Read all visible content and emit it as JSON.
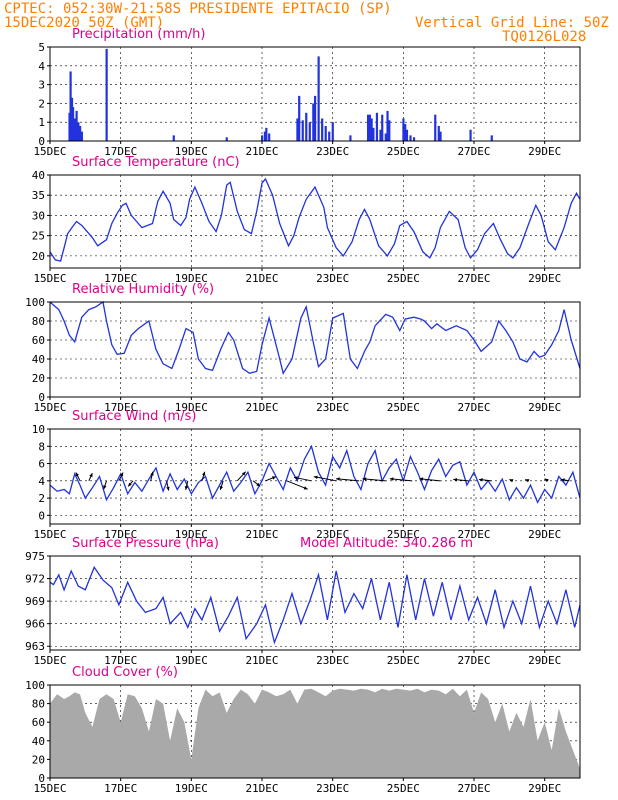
{
  "header": {
    "left_line1": "CPTEC:   052:30W-21:58S  PRESIDENTE EPITACIO (SP)",
    "left_line2": "15DEC2020 50Z (GMT)",
    "right_line2": "Vertical Grid Line: 50Z",
    "right_line3": "TQ0126L028"
  },
  "colors": {
    "header_text": "#ff8000",
    "panel_title": "#e0008a",
    "series_line": "#2233dd",
    "cloud_fill": "#a9a9a9",
    "axis": "#000000"
  },
  "x_axis": {
    "tick_labels": [
      "15DEC",
      "17DEC",
      "19DEC",
      "21DEC",
      "23DEC",
      "25DEC",
      "27DEC",
      "29DEC"
    ],
    "tick_days": [
      0,
      2,
      4,
      6,
      8,
      10,
      12,
      14
    ],
    "range_days": [
      0,
      15
    ]
  },
  "chart_data": [
    {
      "type": "bar",
      "title": "Precipitation (mm/h)",
      "ylim": [
        0,
        5
      ],
      "yticks": [
        0,
        1,
        2,
        3,
        4,
        5
      ],
      "x_unit": "days since 15DEC 00Z",
      "x": [
        0.55,
        0.58,
        0.62,
        0.65,
        0.7,
        0.75,
        0.8,
        0.85,
        0.9,
        1.6,
        3.5,
        5.0,
        6.0,
        6.08,
        6.12,
        6.2,
        7.0,
        7.05,
        7.15,
        7.25,
        7.35,
        7.45,
        7.5,
        7.6,
        7.7,
        7.8,
        7.9,
        8.0,
        8.5,
        9.0,
        9.05,
        9.1,
        9.15,
        9.25,
        9.35,
        9.4,
        9.5,
        9.55,
        9.6,
        10.0,
        10.05,
        10.1,
        10.2,
        10.3,
        10.9,
        11.0,
        11.05,
        11.9,
        12.5
      ],
      "values": [
        1.5,
        3.7,
        2.3,
        1.8,
        1.2,
        1.6,
        1.0,
        0.8,
        0.5,
        4.9,
        0.3,
        0.2,
        0.3,
        0.5,
        0.7,
        0.4,
        1.2,
        2.4,
        1.1,
        1.5,
        1.0,
        2.0,
        2.4,
        4.5,
        1.2,
        0.8,
        0.5,
        1.0,
        0.3,
        1.4,
        1.4,
        1.2,
        0.7,
        1.5,
        0.6,
        1.4,
        0.4,
        1.6,
        1.1,
        1.2,
        0.9,
        0.6,
        0.3,
        0.2,
        1.4,
        0.8,
        0.5,
        0.6,
        0.3
      ]
    },
    {
      "type": "line",
      "title": "Surface Temperature (nC)",
      "ylim": [
        17,
        40
      ],
      "yticks": [
        20,
        25,
        30,
        35,
        40
      ],
      "x": [
        0,
        0.15,
        0.3,
        0.4,
        0.5,
        0.62,
        0.75,
        0.9,
        1.05,
        1.2,
        1.35,
        1.6,
        1.75,
        1.9,
        2.05,
        2.15,
        2.3,
        2.45,
        2.6,
        2.9,
        3.05,
        3.2,
        3.4,
        3.5,
        3.7,
        3.85,
        3.95,
        4.1,
        4.3,
        4.5,
        4.7,
        4.85,
        5.0,
        5.1,
        5.3,
        5.5,
        5.7,
        5.85,
        6.0,
        6.1,
        6.3,
        6.5,
        6.75,
        6.9,
        7.05,
        7.25,
        7.5,
        7.75,
        7.85,
        8.1,
        8.3,
        8.55,
        8.75,
        8.9,
        9.05,
        9.3,
        9.55,
        9.75,
        9.9,
        10.1,
        10.3,
        10.55,
        10.75,
        10.9,
        11.05,
        11.3,
        11.55,
        11.75,
        11.9,
        12.1,
        12.3,
        12.55,
        12.75,
        12.95,
        13.1,
        13.3,
        13.55,
        13.75,
        13.9,
        14.1,
        14.3,
        14.55,
        14.75,
        14.9,
        15.0
      ],
      "values": [
        21,
        19,
        18.7,
        22,
        25.5,
        27,
        28.5,
        27.5,
        26,
        24.5,
        22.5,
        24,
        28,
        30.5,
        32.5,
        33,
        30,
        28.5,
        27,
        28,
        33.5,
        36,
        33,
        29,
        27.5,
        29.5,
        34,
        37,
        33,
        28.5,
        26,
        30,
        37.5,
        38.2,
        31,
        26.5,
        25.5,
        31,
        38,
        39,
        35,
        28,
        22.5,
        25,
        29.5,
        34,
        37,
        32,
        27,
        22,
        20,
        23.5,
        29,
        31.5,
        29,
        22.5,
        20,
        23,
        27.5,
        28.5,
        26,
        21,
        19.5,
        22,
        27,
        31,
        29,
        22,
        19.5,
        21.5,
        25.5,
        28,
        24,
        20.5,
        19.5,
        22,
        28,
        32.5,
        30,
        23.5,
        21.5,
        27,
        33,
        35.5,
        34
      ]
    },
    {
      "type": "line",
      "title": "Relative Humidity (%)",
      "ylim": [
        0,
        100
      ],
      "yticks": [
        0,
        20,
        40,
        60,
        80,
        100
      ],
      "x": [
        0,
        0.25,
        0.4,
        0.55,
        0.7,
        0.9,
        1.1,
        1.3,
        1.5,
        1.6,
        1.75,
        1.9,
        2.1,
        2.3,
        2.5,
        2.8,
        3.0,
        3.2,
        3.45,
        3.65,
        3.85,
        4.05,
        4.2,
        4.4,
        4.6,
        4.85,
        5.05,
        5.2,
        5.45,
        5.65,
        5.85,
        6.0,
        6.2,
        6.5,
        6.6,
        6.85,
        7.1,
        7.25,
        7.45,
        7.6,
        7.8,
        8.0,
        8.3,
        8.5,
        8.7,
        8.9,
        9.05,
        9.2,
        9.5,
        9.7,
        9.9,
        10.05,
        10.3,
        10.5,
        10.6,
        10.8,
        10.95,
        11.2,
        11.5,
        11.8,
        12.0,
        12.2,
        12.5,
        12.7,
        12.9,
        13.1,
        13.3,
        13.5,
        13.7,
        13.85,
        14.0,
        14.2,
        14.4,
        14.55,
        14.75,
        15.0
      ],
      "values": [
        100,
        92,
        80,
        65,
        58,
        84,
        92,
        95,
        100,
        80,
        55,
        45,
        46,
        65,
        72,
        80,
        50,
        35,
        30,
        50,
        72,
        68,
        40,
        30,
        28,
        52,
        68,
        60,
        30,
        25,
        27,
        55,
        83,
        40,
        25,
        40,
        83,
        95,
        58,
        32,
        40,
        83,
        88,
        40,
        30,
        48,
        58,
        75,
        87,
        84,
        70,
        82,
        84,
        82,
        80,
        72,
        77,
        70,
        75,
        70,
        60,
        48,
        58,
        80,
        70,
        58,
        40,
        37,
        48,
        42,
        44,
        55,
        70,
        92,
        60,
        30
      ]
    },
    {
      "type": "line",
      "title": "Surface Wind (m/s)",
      "ylim": [
        -1,
        10
      ],
      "yticks": [
        0,
        2,
        4,
        6,
        8,
        10
      ],
      "x": [
        0,
        0.2,
        0.4,
        0.55,
        0.7,
        0.85,
        1.0,
        1.2,
        1.4,
        1.6,
        1.8,
        2.0,
        2.2,
        2.4,
        2.6,
        2.8,
        3.0,
        3.2,
        3.4,
        3.6,
        3.8,
        4.0,
        4.2,
        4.4,
        4.6,
        4.8,
        5.0,
        5.2,
        5.4,
        5.6,
        5.8,
        6.0,
        6.2,
        6.4,
        6.6,
        6.8,
        7.0,
        7.2,
        7.4,
        7.6,
        7.8,
        8.0,
        8.2,
        8.4,
        8.6,
        8.8,
        9.0,
        9.2,
        9.4,
        9.6,
        9.8,
        10.0,
        10.2,
        10.4,
        10.6,
        10.8,
        11.0,
        11.2,
        11.4,
        11.6,
        11.8,
        12.0,
        12.2,
        12.4,
        12.6,
        12.8,
        13.0,
        13.2,
        13.4,
        13.6,
        13.8,
        14.0,
        14.2,
        14.4,
        14.6,
        14.8,
        15.0
      ],
      "values": [
        3.5,
        2.8,
        3.0,
        2.5,
        4.8,
        3.5,
        2.0,
        3.2,
        4.5,
        1.8,
        3.2,
        4.8,
        2.5,
        3.8,
        2.8,
        4.2,
        5.5,
        2.8,
        4.8,
        3.0,
        4.2,
        2.5,
        3.8,
        4.5,
        2.0,
        3.5,
        5.0,
        2.8,
        3.8,
        5.0,
        2.5,
        4.0,
        6.0,
        4.5,
        3.0,
        5.5,
        4.0,
        6.5,
        8.0,
        5.0,
        3.5,
        6.8,
        5.5,
        7.5,
        4.5,
        3.0,
        6.0,
        7.5,
        4.0,
        5.5,
        6.5,
        4.0,
        6.8,
        5.0,
        3.0,
        5.2,
        6.5,
        4.5,
        5.8,
        6.2,
        3.5,
        5.0,
        3.0,
        4.0,
        2.8,
        4.2,
        1.8,
        3.2,
        2.0,
        3.5,
        1.5,
        3.0,
        2.0,
        4.5,
        3.5,
        5.0,
        2.0
      ],
      "vectors": [
        {
          "day": 0.85,
          "u": -0.6,
          "v": 1.2
        },
        {
          "day": 1.1,
          "u": 0.5,
          "v": 1.1
        },
        {
          "day": 1.6,
          "u": -0.4,
          "v": -1.2
        },
        {
          "day": 1.95,
          "u": 0.6,
          "v": 1.2
        },
        {
          "day": 2.35,
          "u": -0.7,
          "v": -0.8
        },
        {
          "day": 2.85,
          "u": 0.3,
          "v": 1.3
        },
        {
          "day": 3.3,
          "u": 0.3,
          "v": -1.4
        },
        {
          "day": 3.9,
          "u": -0.3,
          "v": -1.3
        },
        {
          "day": 4.3,
          "u": 0.4,
          "v": 1.3
        },
        {
          "day": 4.9,
          "u": -0.4,
          "v": -1.3
        },
        {
          "day": 5.3,
          "u": 1.2,
          "v": 1.3
        },
        {
          "day": 5.75,
          "u": 1.0,
          "v": -0.8
        },
        {
          "day": 6.1,
          "u": 1.5,
          "v": 0.6
        },
        {
          "day": 6.7,
          "u": 3.0,
          "v": -1.2
        },
        {
          "day": 7.4,
          "u": -2.5,
          "v": 0.5
        },
        {
          "day": 8.1,
          "u": -3.2,
          "v": 0.6
        },
        {
          "day": 8.75,
          "u": -3.3,
          "v": 0.3
        },
        {
          "day": 9.5,
          "u": -3.3,
          "v": 0.3
        },
        {
          "day": 10.25,
          "u": -3.2,
          "v": 0.3
        },
        {
          "day": 11.05,
          "u": -3.0,
          "v": 0.3
        },
        {
          "day": 11.85,
          "u": -2.2,
          "v": 0.2
        },
        {
          "day": 12.5,
          "u": -1.8,
          "v": 0.2
        },
        {
          "day": 13.1,
          "u": -0.5,
          "v": 0.2
        },
        {
          "day": 13.55,
          "u": -0.5,
          "v": 0.2
        },
        {
          "day": 14.1,
          "u": -0.5,
          "v": 0.3
        },
        {
          "day": 14.7,
          "u": -1.2,
          "v": 0.2
        }
      ]
    },
    {
      "type": "line",
      "title": "Surface Pressure (hPa)",
      "annotation": "Model Altitude: 340.286 m",
      "ylim": [
        962.5,
        975
      ],
      "yticks": [
        963,
        966,
        969,
        972,
        975
      ],
      "x": [
        0,
        0.1,
        0.25,
        0.4,
        0.6,
        0.8,
        1.0,
        1.25,
        1.5,
        1.75,
        1.95,
        2.2,
        2.45,
        2.7,
        3.0,
        3.2,
        3.4,
        3.7,
        3.9,
        4.1,
        4.3,
        4.55,
        4.8,
        5.05,
        5.3,
        5.55,
        5.85,
        6.1,
        6.35,
        6.6,
        6.85,
        7.1,
        7.35,
        7.6,
        7.85,
        8.1,
        8.35,
        8.6,
        8.85,
        9.1,
        9.35,
        9.6,
        9.85,
        10.1,
        10.35,
        10.6,
        10.85,
        11.1,
        11.35,
        11.6,
        11.85,
        12.1,
        12.35,
        12.6,
        12.85,
        13.1,
        13.35,
        13.6,
        13.85,
        14.1,
        14.35,
        14.6,
        14.85,
        15.0
      ],
      "values": [
        971.5,
        971.2,
        972.5,
        970.5,
        973.0,
        971.0,
        970.5,
        973.5,
        971.8,
        970.8,
        968.5,
        971.5,
        969.0,
        967.5,
        968.0,
        969.5,
        966.0,
        967.5,
        965.5,
        968.0,
        966.5,
        969.5,
        965.0,
        967.0,
        969.5,
        964.0,
        966.0,
        968.5,
        963.5,
        966.5,
        970.0,
        966.0,
        969.0,
        972.5,
        966.5,
        973.0,
        967.5,
        970.0,
        968.0,
        972.0,
        966.5,
        971.5,
        965.5,
        972.5,
        966.5,
        972.0,
        967.0,
        971.5,
        966.5,
        971.0,
        966.5,
        969.5,
        966.0,
        970.5,
        965.5,
        969.0,
        966.0,
        971.0,
        965.5,
        969.0,
        966.0,
        970.5,
        965.5,
        968.5
      ]
    },
    {
      "type": "area",
      "title": "Cloud Cover (%)",
      "ylim": [
        0,
        100
      ],
      "yticks": [
        0,
        20,
        40,
        60,
        80,
        100
      ],
      "x": [
        0,
        0.2,
        0.4,
        0.55,
        0.7,
        0.85,
        1.0,
        1.2,
        1.4,
        1.6,
        1.8,
        2.0,
        2.2,
        2.4,
        2.6,
        2.8,
        3.0,
        3.2,
        3.4,
        3.6,
        3.8,
        4.0,
        4.2,
        4.4,
        4.6,
        4.8,
        5.0,
        5.2,
        5.4,
        5.6,
        5.8,
        6.0,
        6.2,
        6.4,
        6.6,
        6.8,
        7.0,
        7.2,
        7.4,
        7.6,
        7.8,
        8.0,
        8.2,
        8.4,
        8.6,
        8.8,
        9.0,
        9.2,
        9.4,
        9.6,
        9.8,
        10.0,
        10.2,
        10.4,
        10.6,
        10.8,
        11.0,
        11.2,
        11.4,
        11.6,
        11.8,
        12.0,
        12.2,
        12.4,
        12.6,
        12.8,
        13.0,
        13.2,
        13.4,
        13.6,
        13.8,
        14.0,
        14.2,
        14.4,
        14.6,
        14.8,
        15.0
      ],
      "values": [
        80,
        90,
        85,
        88,
        92,
        90,
        70,
        55,
        85,
        90,
        85,
        60,
        90,
        88,
        75,
        50,
        85,
        80,
        40,
        75,
        60,
        20,
        75,
        95,
        88,
        92,
        70,
        85,
        95,
        90,
        80,
        95,
        92,
        88,
        90,
        95,
        80,
        95,
        96,
        92,
        88,
        94,
        96,
        95,
        94,
        96,
        95,
        92,
        96,
        94,
        96,
        95,
        94,
        96,
        92,
        95,
        94,
        90,
        96,
        88,
        95,
        70,
        92,
        85,
        60,
        80,
        50,
        70,
        55,
        85,
        40,
        60,
        30,
        75,
        50,
        30,
        10
      ]
    }
  ],
  "panel_titles": {
    "precip": "Precipitation (mm/h)",
    "temp": "Surface Temperature (nC)",
    "rh": "Relative Humidity (%)",
    "wind": "Surface Wind (m/s)",
    "press": "Surface Pressure (hPa)",
    "press_annotation": "Model Altitude: 340.286 m",
    "cloud": "Cloud Cover (%)"
  }
}
